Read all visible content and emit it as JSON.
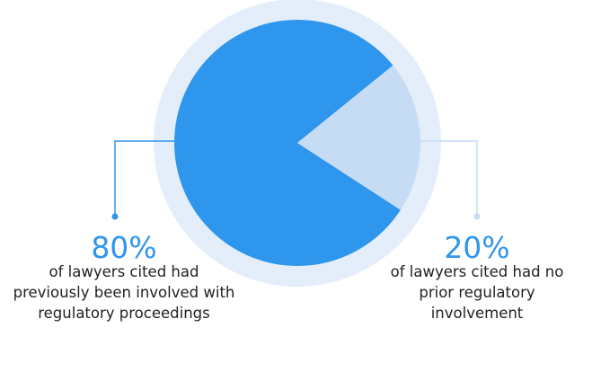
{
  "chart_data": {
    "type": "pie",
    "categories": [
      "of lawyers cited had previously been involved with regulatory proceedings",
      "of lawyers cited had no prior regulatory involvement"
    ],
    "values": [
      80,
      20
    ],
    "value_labels": [
      "80%",
      "20%"
    ],
    "colors": [
      "#2e96ec",
      "#c6dcf5"
    ]
  }
}
